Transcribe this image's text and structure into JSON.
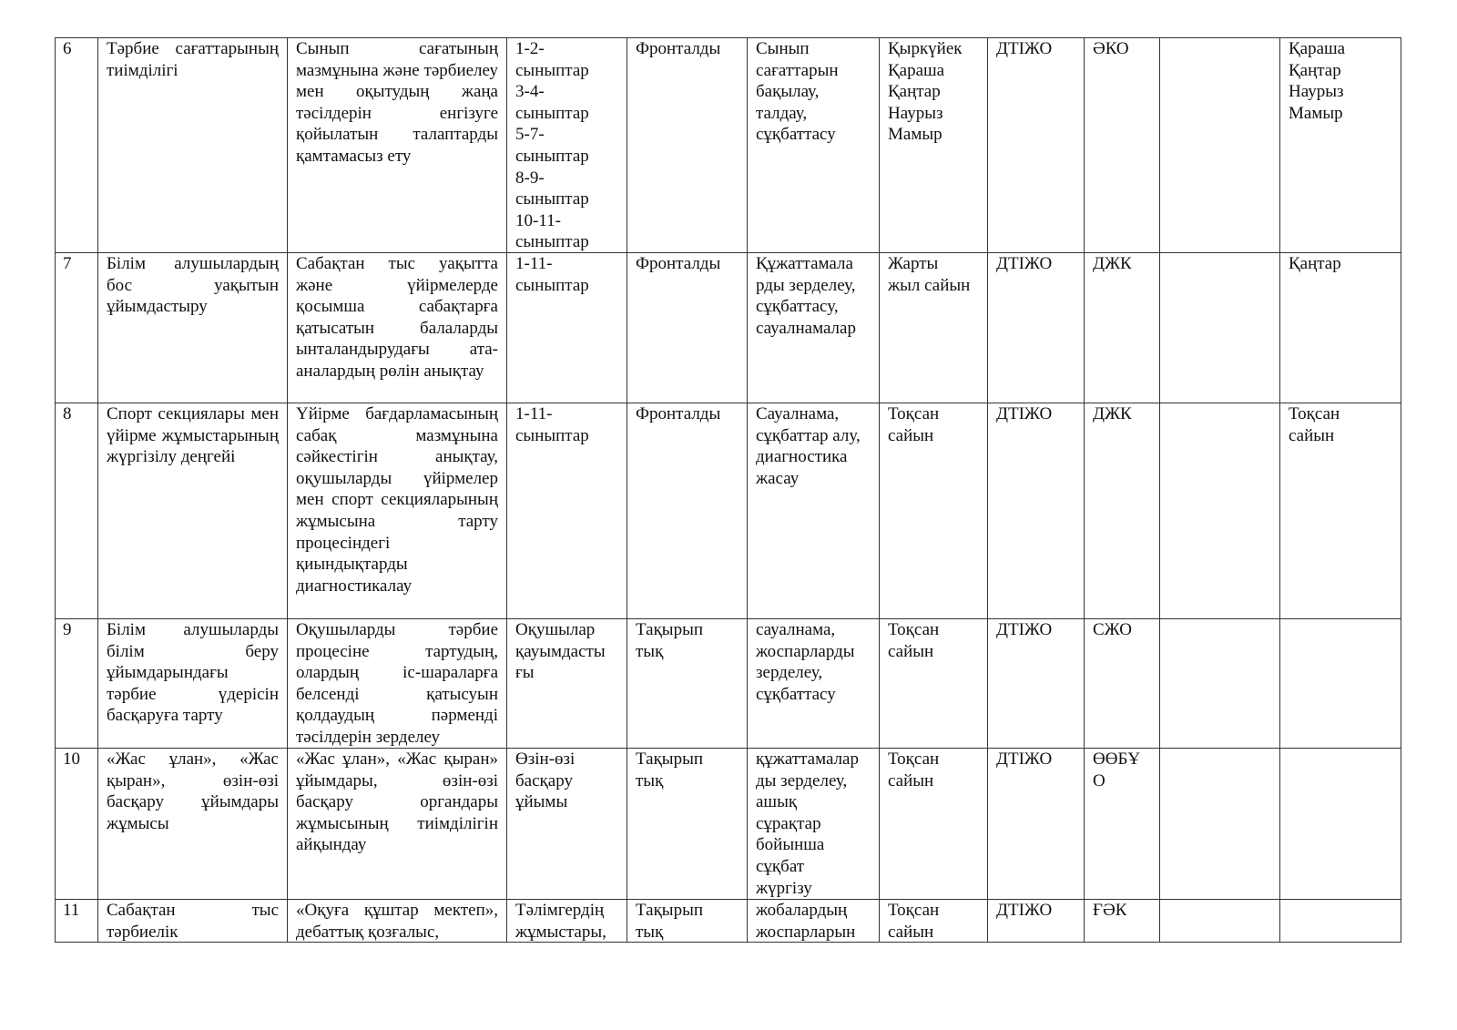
{
  "table": {
    "rows": [
      {
        "no": "6",
        "topic": "Тәрбие сағаттарының тиімділігі",
        "goal": "Сынып сағатының мазмұнына және тәрбиелеу мен оқытудың жаңа тәсілдерін енгізуге қойылатын талаптарды қамтамасыз ету",
        "object": "1-2-\nсыныптар\n3-4-\nсыныптар\n5-7-\nсыныптар\n8-9-\nсыныптар\n10-11-\nсыныптар",
        "type": "Фронталды",
        "method": "Сынып\nсағаттарын\nбақылау,\nталдау,\nсұқбаттасу",
        "period": "Қыркүйек\nҚараша\nҚаңтар\nНаурыз\nМамыр",
        "resp": "ДТІЖО",
        "place": "ӘКО",
        "result": "",
        "extra": "Қараша\nҚаңтар\nНаурыз\nМамыр"
      },
      {
        "no": "7",
        "topic": "Білім алушылардың бос уақытын ұйымдастыру",
        "goal": "Сабақтан тыс уақытта және үйірмелерде қосымша сабақтарға қатысатын балаларды ынталандырудағы ата-аналардың рөлін анықтау",
        "object": "1-11-\nсыныптар",
        "type": "Фронталды",
        "method": "Құжаттамала\nрды  зерделеу,\nсұқбаттасу,\nсауалнамалар",
        "period": "Жарты\nжыл сайын",
        "resp": "ДТІЖО",
        "place": "ДЖК",
        "result": "",
        "extra": "Қаңтар"
      },
      {
        "no": "8",
        "topic": "Спорт секциялары мен үйірме жұмыстарының жүргізілу деңгейі",
        "goal": "Үйірме бағдарламасының сабақ мазмұнына сәйкестігін анықтау, оқушыларды үйірмелер мен спорт секцияларының жұмысына тарту процесіндегі қиындықтарды диагностикалау",
        "object": "1-11-\nсыныптар",
        "type": "Фронталды",
        "method": "Сауалнама,\nсұқбаттар алу,\nдиагностика\nжасау",
        "period": "Тоқсан\nсайын",
        "resp": "ДТІЖО",
        "place": "ДЖК",
        "result": "",
        "extra": "Тоқсан\nсайын"
      },
      {
        "no": "9",
        "topic": "Білім алушыларды білім беру ұйымдарындағы тәрбие үдерісін басқаруға тарту",
        "goal": "Оқушыларды тәрбие процесіне тартудың, олардың іс-шараларға белсенді қатысуын қолдаудың пәрменді тәсілдерін зерделеу",
        "object": "Оқушылар\nқауымдасты\nғы",
        "type": "Тақырып\nтық",
        "method": "сауалнама,\nжоспарларды\nзерделеу,\nсұқбаттасу",
        "period": "Тоқсан\nсайын",
        "resp": "ДТІЖО",
        "place": "СЖО",
        "result": "",
        "extra": ""
      },
      {
        "no": "10",
        "topic": "«Жас ұлан», «Жас қыран», өзін-өзі басқару ұйымдары жұмысы",
        "goal": "«Жас ұлан», «Жас қыран» ұйымдары, өзін-өзі басқару органдары жұмысының тиімділігін айқындау",
        "object": "Өзін-өзі\nбасқару\nұйымы",
        "type": "Тақырып\nтық",
        "method": "құжаттамалар\nды  зерделеу,\nашық\nсұрақтар\nбойынша\nсұқбат\nжүргізу",
        "period": "Тоқсан\nсайын",
        "resp": "ДТІЖО",
        "place": "ӨӨБҰ\nО",
        "result": "",
        "extra": ""
      },
      {
        "no": "11",
        "topic": "Сабақтан тыс тәрбиелік",
        "goal": "«Оқуға құштар мектеп», дебаттық қозғалыс,",
        "object": "Тәлімгердің\nжұмыстары,",
        "type": "Тақырып\nтық",
        "method": "жобалардың\nжоспарларын",
        "period": "Тоқсан\nсайын",
        "resp": "ДТІЖО",
        "place": "ҒӘК",
        "result": "",
        "extra": ""
      }
    ]
  }
}
